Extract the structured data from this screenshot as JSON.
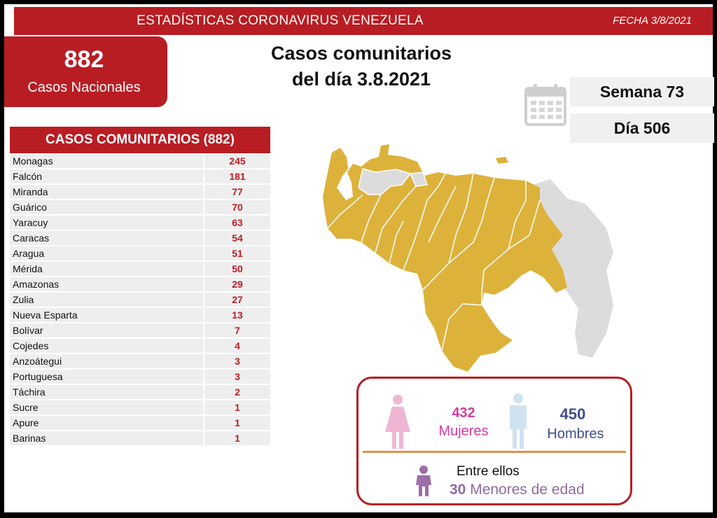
{
  "header": {
    "title": "ESTADÍSTICAS CORONAVIRUS VENEZUELA",
    "date": "FECHA 3/8/2021"
  },
  "national": {
    "number": "882",
    "label": "Casos Nacionales"
  },
  "main_title": {
    "line1": "Casos comunitarios",
    "line2": "del día 3.8.2021"
  },
  "calendar": {
    "week": "Semana 73",
    "day": "Día 506"
  },
  "table": {
    "header": "CASOS COMUNITARIOS (882)",
    "rows": [
      {
        "name": "Monagas",
        "value": "245"
      },
      {
        "name": "Falcón",
        "value": "181"
      },
      {
        "name": "Miranda",
        "value": "77"
      },
      {
        "name": "Guárico",
        "value": "70"
      },
      {
        "name": "Yaracuy",
        "value": "63"
      },
      {
        "name": "Caracas",
        "value": "54"
      },
      {
        "name": "Aragua",
        "value": "51"
      },
      {
        "name": "Mérida",
        "value": "50"
      },
      {
        "name": "Amazonas",
        "value": "29"
      },
      {
        "name": "Zulia",
        "value": "27"
      },
      {
        "name": "Nueva Esparta",
        "value": "13"
      },
      {
        "name": "Bolívar",
        "value": "7"
      },
      {
        "name": "Cojedes",
        "value": "4"
      },
      {
        "name": "Anzoátegui",
        "value": "3"
      },
      {
        "name": "Portuguesa",
        "value": "3"
      },
      {
        "name": "Táchira",
        "value": "2"
      },
      {
        "name": "Sucre",
        "value": "1"
      },
      {
        "name": "Apure",
        "value": "1"
      },
      {
        "name": "Barinas",
        "value": "1"
      }
    ]
  },
  "gender": {
    "female_count": "432",
    "female_label": "Mujeres",
    "male_count": "450",
    "male_label": "Hombres",
    "minors_intro": "Entre ellos",
    "minors_count": "30",
    "minors_label": "Menores de edad"
  },
  "colors": {
    "brand_red": "#b81d23",
    "map_gold": "#ddb23b",
    "map_grey": "#dcdcdc",
    "female": "#d63aa1",
    "male": "#3e4f8c",
    "minors": "#8f6c9e"
  },
  "icons": [
    "calendar-icon",
    "woman-icon",
    "man-icon",
    "child-icon"
  ]
}
